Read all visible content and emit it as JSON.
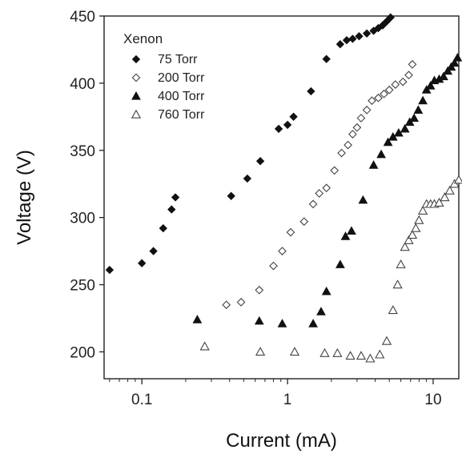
{
  "chart_data": {
    "type": "scatter",
    "title": "",
    "xlabel": "Current (mA)",
    "ylabel": "Voltage (V)",
    "x_scale": "log",
    "xlim": [
      0.055,
      15
    ],
    "ylim": [
      180,
      450
    ],
    "x_ticks": [
      0.1,
      1,
      10
    ],
    "x_tick_labels": [
      "0.1",
      "1",
      "10"
    ],
    "y_ticks": [
      200,
      250,
      300,
      350,
      400,
      450
    ],
    "y_tick_labels": [
      "200",
      "250",
      "300",
      "350",
      "400",
      "450"
    ],
    "grid": false,
    "legend": {
      "title": "Xenon",
      "position": "top-left"
    },
    "series": [
      {
        "name": "75 Torr",
        "marker": "filled-diamond",
        "x": [
          0.06,
          0.1,
          0.12,
          0.14,
          0.16,
          0.17,
          0.41,
          0.53,
          0.65,
          0.87,
          1.0,
          1.1,
          1.45,
          1.85,
          2.3,
          2.55,
          2.8,
          3.1,
          3.5,
          3.9,
          4.2,
          4.5,
          4.8,
          5.1
        ],
        "y": [
          261,
          266,
          275,
          292,
          306,
          315,
          316,
          329,
          342,
          366,
          369,
          375,
          394,
          418,
          429,
          432,
          433,
          435,
          437,
          439,
          441,
          443,
          446,
          449
        ]
      },
      {
        "name": "200 Torr",
        "marker": "open-diamond",
        "x": [
          0.38,
          0.48,
          0.64,
          0.8,
          0.92,
          1.05,
          1.3,
          1.5,
          1.65,
          1.85,
          2.1,
          2.35,
          2.6,
          2.8,
          3.0,
          3.2,
          3.5,
          3.8,
          4.2,
          4.6,
          5.0,
          5.5,
          6.2,
          6.8,
          7.2
        ],
        "y": [
          235,
          237,
          246,
          264,
          275,
          289,
          297,
          310,
          318,
          322,
          335,
          348,
          354,
          362,
          367,
          374,
          380,
          387,
          389,
          392,
          395,
          399,
          401,
          406,
          414
        ]
      },
      {
        "name": "400 Torr",
        "marker": "filled-triangle",
        "x": [
          0.24,
          0.64,
          0.92,
          1.5,
          1.7,
          1.85,
          2.3,
          2.5,
          2.75,
          3.3,
          3.9,
          4.4,
          4.9,
          5.3,
          5.8,
          6.4,
          6.9,
          7.4,
          7.9,
          8.5,
          9.0,
          9.6,
          10.2,
          11.0,
          11.8,
          12.6,
          13.3,
          14.0,
          14.7
        ],
        "y": [
          224,
          223,
          221,
          221,
          230,
          245,
          265,
          286,
          290,
          313,
          339,
          347,
          356,
          360,
          363,
          366,
          371,
          374,
          380,
          387,
          395,
          398,
          402,
          403,
          405,
          409,
          412,
          415,
          419
        ]
      },
      {
        "name": "760 Torr",
        "marker": "open-triangle",
        "x": [
          0.27,
          0.65,
          1.12,
          1.8,
          2.2,
          2.7,
          3.2,
          3.7,
          4.3,
          4.8,
          5.3,
          5.7,
          6.0,
          6.4,
          6.8,
          7.2,
          7.6,
          8.0,
          8.5,
          9.0,
          9.6,
          10.2,
          11.0,
          12.0,
          13.0,
          14.0,
          15.0
        ],
        "y": [
          204,
          200,
          200,
          199,
          199,
          197,
          197,
          195,
          198,
          208,
          231,
          250,
          265,
          278,
          283,
          287,
          292,
          298,
          305,
          310,
          310,
          310,
          311,
          315,
          320,
          325,
          328
        ]
      }
    ]
  }
}
